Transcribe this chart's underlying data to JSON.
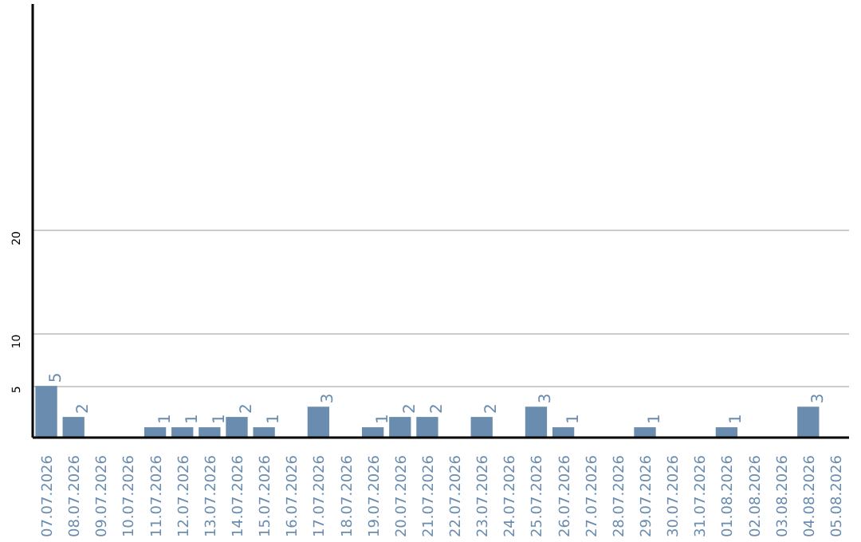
{
  "chart_data": {
    "type": "bar",
    "categories": [
      "07.07.2026",
      "08.07.2026",
      "09.07.2026",
      "10.07.2026",
      "11.07.2026",
      "12.07.2026",
      "13.07.2026",
      "14.07.2026",
      "15.07.2026",
      "16.07.2026",
      "17.07.2026",
      "18.07.2026",
      "19.07.2026",
      "20.07.2026",
      "21.07.2026",
      "22.07.2026",
      "23.07.2026",
      "24.07.2026",
      "25.07.2026",
      "26.07.2026",
      "27.07.2026",
      "28.07.2026",
      "29.07.2026",
      "30.07.2026",
      "31.07.2026",
      "01.08.2026",
      "02.08.2026",
      "03.08.2026",
      "04.08.2026",
      "05.08.2026"
    ],
    "values": [
      5,
      2,
      0,
      0,
      1,
      1,
      1,
      2,
      1,
      0,
      3,
      0,
      1,
      2,
      2,
      0,
      2,
      0,
      3,
      1,
      0,
      0,
      1,
      0,
      0,
      1,
      0,
      0,
      3,
      0
    ],
    "value_labels": [
      "5",
      "2",
      null,
      null,
      "1",
      "1",
      "1",
      "2",
      "1",
      null,
      "3",
      null,
      "1",
      "2",
      "2",
      null,
      "2",
      null,
      "3",
      "1",
      null,
      null,
      "1",
      null,
      null,
      "1",
      null,
      null,
      "3",
      null
    ],
    "color": "#6a8caf",
    "ylim": [
      0,
      42
    ],
    "yticks": [
      5,
      10,
      20
    ],
    "grid": "y"
  }
}
